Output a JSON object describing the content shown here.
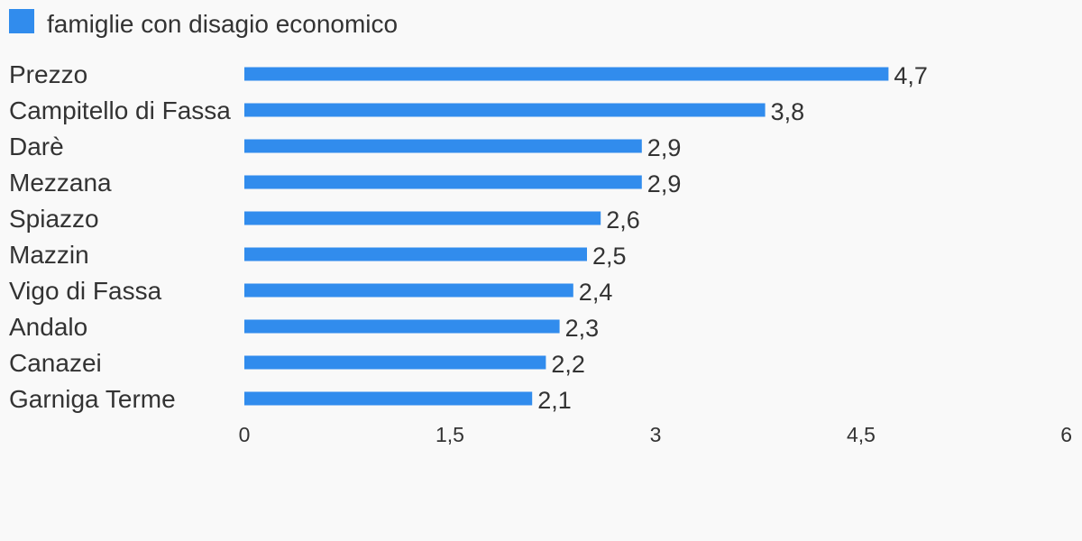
{
  "chart_data": {
    "type": "bar",
    "orientation": "horizontal",
    "categories": [
      "Prezzo",
      "Campitello di Fassa",
      "Darè",
      "Mezzana",
      "Spiazzo",
      "Mazzin",
      "Vigo di Fassa",
      "Andalo",
      "Canazei",
      "Garniga Terme"
    ],
    "series": [
      {
        "name": "famiglie con disagio economico",
        "color": "#318ced",
        "values": [
          4.7,
          3.8,
          2.9,
          2.9,
          2.6,
          2.5,
          2.4,
          2.3,
          2.2,
          2.1
        ],
        "labels": [
          "4,7",
          "3,8",
          "2,9",
          "2,9",
          "2,6",
          "2,5",
          "2,4",
          "2,3",
          "2,2",
          "2,1"
        ]
      }
    ],
    "xlim": [
      0,
      6
    ],
    "x_ticks": [
      0,
      1.5,
      3,
      4.5,
      6
    ],
    "x_tick_labels": [
      "0",
      "1,5",
      "3",
      "4,5",
      "6"
    ],
    "grid": false,
    "legend": "top-left",
    "title": "",
    "xlabel": "",
    "ylabel": ""
  },
  "colors": {
    "background": "#f9f9f9",
    "text": "#333333",
    "bar": "#318ced"
  }
}
